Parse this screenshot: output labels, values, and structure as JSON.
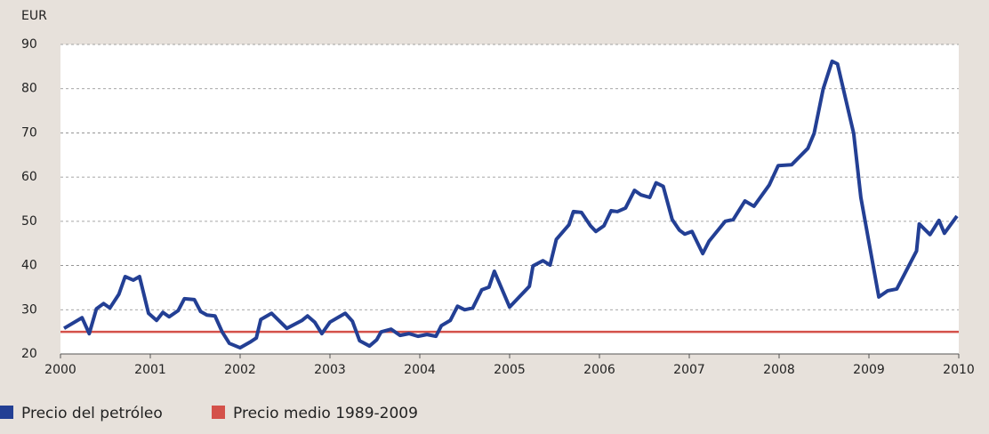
{
  "chart_data": {
    "type": "line",
    "ylabel": "EUR",
    "xlim": [
      2000,
      2010
    ],
    "xticks": [
      2000,
      2001,
      2002,
      2003,
      2004,
      2005,
      2006,
      2007,
      2008,
      2009,
      2010
    ],
    "ylim": [
      20,
      90
    ],
    "yticks": [
      20,
      30,
      40,
      50,
      60,
      70,
      80,
      90
    ],
    "grid": true,
    "legend": "bottom-left",
    "series": [
      {
        "name": "Precio del petróleo",
        "color": "#233f94",
        "x": [
          2000.04,
          2000.24,
          2000.32,
          2000.4,
          2000.48,
          2000.55,
          2000.65,
          2000.72,
          2000.81,
          2000.88,
          2000.98,
          2001.07,
          2001.14,
          2001.21,
          2001.31,
          2001.38,
          2001.49,
          2001.56,
          2001.63,
          2001.72,
          2001.8,
          2001.88,
          2002.0,
          2002.12,
          2002.18,
          2002.23,
          2002.35,
          2002.52,
          2002.69,
          2002.75,
          2002.83,
          2002.91,
          2003.0,
          2003.17,
          2003.25,
          2003.33,
          2003.44,
          2003.52,
          2003.57,
          2003.68,
          2003.78,
          2003.88,
          2003.98,
          2004.08,
          2004.18,
          2004.24,
          2004.34,
          2004.42,
          2004.5,
          2004.59,
          2004.69,
          2004.77,
          2004.83,
          2005.0,
          2005.22,
          2005.26,
          2005.37,
          2005.45,
          2005.52,
          2005.66,
          2005.71,
          2005.8,
          2005.9,
          2005.96,
          2006.05,
          2006.13,
          2006.2,
          2006.29,
          2006.39,
          2006.46,
          2006.56,
          2006.63,
          2006.71,
          2006.81,
          2006.89,
          2006.95,
          2007.03,
          2007.15,
          2007.22,
          2007.4,
          2007.49,
          2007.62,
          2007.72,
          2007.89,
          2007.99,
          2008.14,
          2008.32,
          2008.39,
          2008.49,
          2008.59,
          2008.65,
          2008.83,
          2008.91,
          2009.11,
          2009.21,
          2009.31,
          2009.53,
          2009.56,
          2009.68,
          2009.78,
          2009.84,
          2009.98
        ],
        "values": [
          25.8,
          28.2,
          24.6,
          30.2,
          31.4,
          30.4,
          33.5,
          37.5,
          36.7,
          37.5,
          29.2,
          27.6,
          29.4,
          28.4,
          29.8,
          32.5,
          32.3,
          29.6,
          28.8,
          28.6,
          25.0,
          22.4,
          21.4,
          22.8,
          23.6,
          27.8,
          29.2,
          25.8,
          27.6,
          28.6,
          27.2,
          24.6,
          27.2,
          29.2,
          27.4,
          23.0,
          21.8,
          23.2,
          25.0,
          25.6,
          24.2,
          24.6,
          24.0,
          24.4,
          24.0,
          26.4,
          27.6,
          30.8,
          30.0,
          30.4,
          34.5,
          35.1,
          38.7,
          30.6,
          35.3,
          39.9,
          41.1,
          40.1,
          45.9,
          49.2,
          52.2,
          52.0,
          49.0,
          47.7,
          49.0,
          52.4,
          52.2,
          53.0,
          57.0,
          56.0,
          55.4,
          58.7,
          57.9,
          50.4,
          48.0,
          47.1,
          47.7,
          42.7,
          45.5,
          50.0,
          50.4,
          54.6,
          53.4,
          58.2,
          62.6,
          62.8,
          66.5,
          69.9,
          79.9,
          86.2,
          85.6,
          69.9,
          55.4,
          32.9,
          34.3,
          34.7,
          43.3,
          49.4,
          47.0,
          50.2,
          47.3,
          51.2
        ]
      },
      {
        "name": "Precio medio 1989-2009",
        "color": "#d4514a",
        "x": [
          2000,
          2010
        ],
        "values": [
          25,
          25
        ]
      }
    ]
  }
}
